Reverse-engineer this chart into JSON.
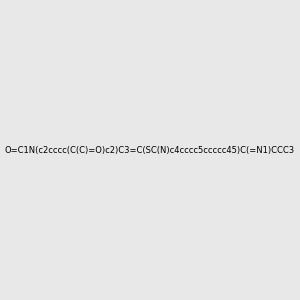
{
  "smiles": "O=C1N(c2cccc(C(C)=O)c2)C3=C(SC(N)c4cccc5ccccc45)C(=N1)CCC3",
  "image_size": 300,
  "background_color": "#e8e8e8",
  "title": ""
}
